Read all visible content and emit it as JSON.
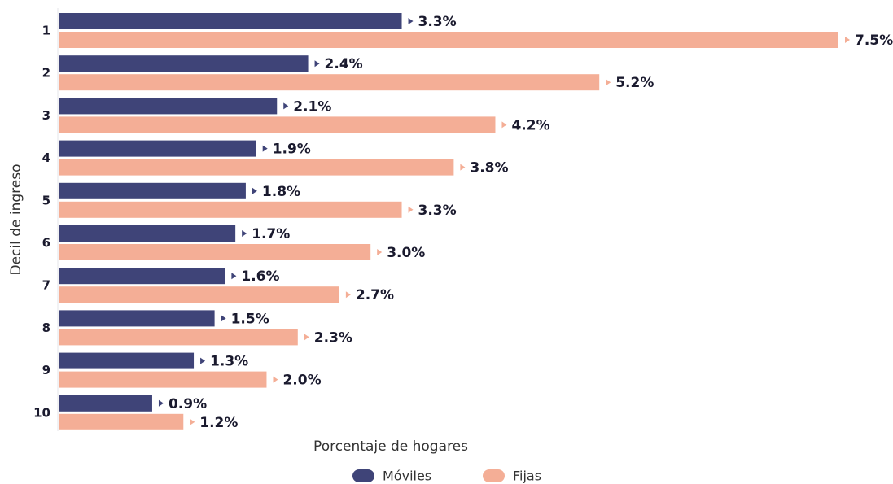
{
  "chart_data": {
    "type": "bar",
    "orientation": "horizontal",
    "y_label": "Decil de ingreso",
    "x_label": "Porcentaje de hogares",
    "categories": [
      "1",
      "2",
      "3",
      "4",
      "5",
      "6",
      "7",
      "8",
      "9",
      "10"
    ],
    "series": [
      {
        "name": "Móviles",
        "color": "#3f4478",
        "values": [
          3.3,
          2.4,
          2.1,
          1.9,
          1.8,
          1.7,
          1.6,
          1.5,
          1.3,
          0.9
        ],
        "value_labels": [
          "3.3%",
          "2.4%",
          "2.1%",
          "1.9%",
          "1.8%",
          "1.7%",
          "1.6%",
          "1.5%",
          "1.3%",
          "0.9%"
        ]
      },
      {
        "name": "Fijas",
        "color": "#f4ae96",
        "values": [
          7.5,
          5.2,
          4.2,
          3.8,
          3.3,
          3.0,
          2.7,
          2.3,
          2.0,
          1.2
        ],
        "value_labels": [
          "7.5%",
          "5.2%",
          "4.2%",
          "3.8%",
          "3.3%",
          "3.0%",
          "2.7%",
          "2.3%",
          "2.0%",
          "1.2%"
        ]
      }
    ],
    "legend": "bottom"
  }
}
